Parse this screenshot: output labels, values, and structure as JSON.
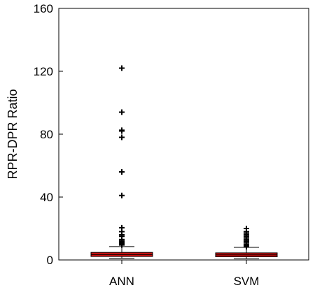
{
  "chart_data": {
    "type": "box",
    "title": "",
    "xlabel": "",
    "ylabel": "RPR-DPR Ratio",
    "ylim": [
      0,
      160
    ],
    "yticks": [
      0,
      40,
      80,
      120,
      160
    ],
    "categories": [
      "ANN",
      "SVM"
    ],
    "grid": false,
    "box_color": "#cc1111",
    "boxes": [
      {
        "name": "ANN",
        "whisker_low": 1.0,
        "q1": 2.2,
        "median": 3.4,
        "q3": 4.8,
        "whisker_high": 8.5,
        "outliers": [
          9.5,
          10.0,
          10.5,
          11.0,
          11.5,
          12.0,
          13.0,
          15.0,
          16.0,
          18.0,
          20.5,
          41.0,
          56.0,
          78.0,
          82.0,
          82.5,
          94.0,
          122.0
        ]
      },
      {
        "name": "SVM",
        "whisker_low": 0.8,
        "q1": 2.0,
        "median": 3.2,
        "q3": 4.5,
        "whisker_high": 8.0,
        "outliers": [
          8.5,
          9.0,
          9.5,
          10.0,
          11.0,
          12.0,
          13.0,
          14.0,
          15.0,
          16.0,
          17.0,
          18.0,
          20.0
        ]
      }
    ]
  }
}
